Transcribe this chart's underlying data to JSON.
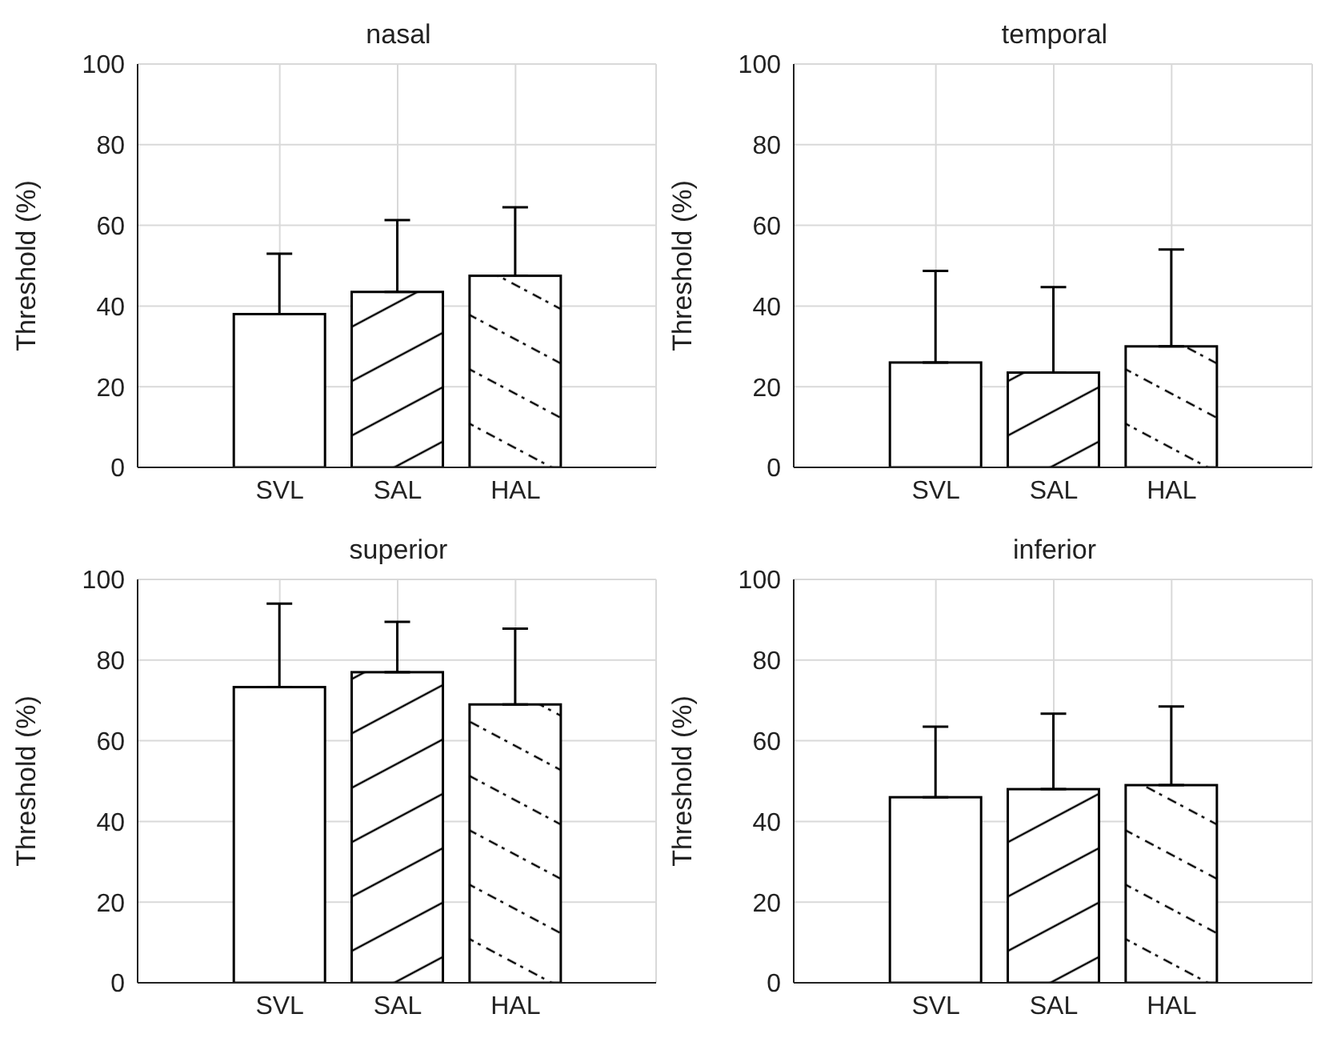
{
  "chart_data": [
    {
      "type": "bar",
      "title": "nasal",
      "ylabel": "Threshold (%)",
      "categories": [
        "SVL",
        "SAL",
        "HAL"
      ],
      "values": [
        38,
        43.5,
        47.5
      ],
      "errors": [
        [
          38,
          53
        ],
        [
          43.5,
          61.3
        ],
        [
          47.5,
          64.5
        ]
      ],
      "colors": [
        "#ffffff",
        "#ffffff",
        "#ffffff"
      ],
      "ylim": [
        0,
        100
      ],
      "yticks": [
        0,
        20,
        40,
        60,
        80,
        100
      ],
      "grid": true
    },
    {
      "type": "bar",
      "title": "temporal",
      "ylabel": "Threshold (%)",
      "categories": [
        "SVL",
        "SAL",
        "HAL"
      ],
      "values": [
        26,
        23.5,
        30
      ],
      "errors": [
        [
          26,
          48.7
        ],
        [
          23.5,
          44.7
        ],
        [
          30,
          54
        ]
      ],
      "colors": [
        "#ffffff",
        "#ffffff",
        "#ffffff"
      ],
      "ylim": [
        0,
        100
      ],
      "yticks": [
        0,
        20,
        40,
        60,
        80,
        100
      ],
      "grid": true
    },
    {
      "type": "bar",
      "title": "superior",
      "ylabel": "Threshold (%)",
      "categories": [
        "SVL",
        "SAL",
        "HAL"
      ],
      "values": [
        73.3,
        77,
        69
      ],
      "errors": [
        [
          73.3,
          94
        ],
        [
          77,
          89.5
        ],
        [
          69,
          87.8
        ]
      ],
      "colors": [
        "#ffffff",
        "#ffffff",
        "#ffffff"
      ],
      "ylim": [
        0,
        100
      ],
      "yticks": [
        0,
        20,
        40,
        60,
        80,
        100
      ],
      "grid": true
    },
    {
      "type": "bar",
      "title": "inferior",
      "ylabel": "Threshold (%)",
      "categories": [
        "SVL",
        "SAL",
        "HAL"
      ],
      "values": [
        46,
        48,
        49
      ],
      "errors": [
        [
          46,
          63.5
        ],
        [
          48,
          66.7
        ],
        [
          49,
          68.5
        ]
      ],
      "colors": [
        "#ffffff",
        "#ffffff",
        "#ffffff"
      ],
      "ylim": [
        0,
        100
      ],
      "yticks": [
        0,
        20,
        40,
        60,
        80,
        100
      ],
      "grid": true
    }
  ]
}
